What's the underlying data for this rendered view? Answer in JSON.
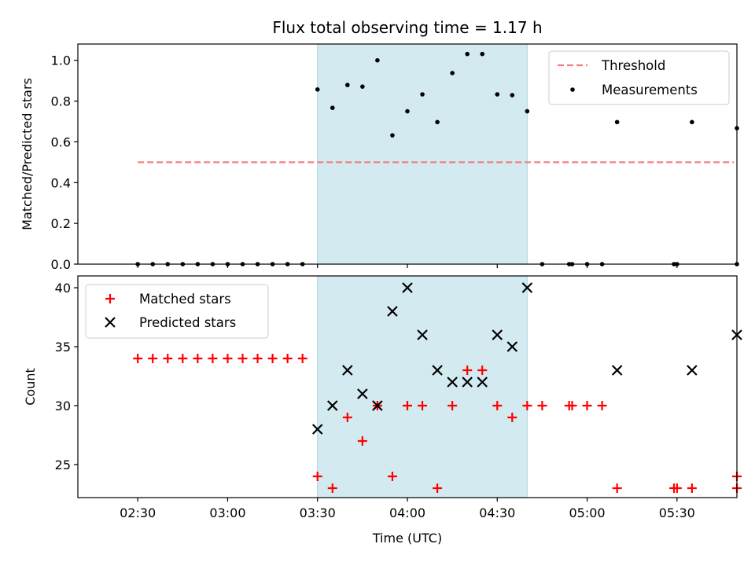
{
  "chart_data": [
    {
      "type": "scatter",
      "title": "Flux total observing time = 1.17 h",
      "xlabel": "",
      "ylabel": "Matched/Predicted stars",
      "ylim": [
        0,
        1.08
      ],
      "yticks": [
        0.0,
        0.2,
        0.4,
        0.6,
        0.8,
        1.0
      ],
      "ytick_labels": [
        "0.0",
        "0.2",
        "0.4",
        "0.6",
        "0.8",
        "1.0"
      ],
      "xlim": [
        "02:10",
        "05:50"
      ],
      "grid": false,
      "legend_placement": "top-right",
      "shaded_region": {
        "x_start": "03:30",
        "x_end": "04:40",
        "color": "#d3eaf1"
      },
      "threshold": {
        "name": "Threshold",
        "value": 0.5,
        "x_start": "02:30",
        "x_end": "05:49",
        "color": "#f08080",
        "style": "dashed"
      },
      "series": [
        {
          "name": "Measurements",
          "color": "#000000",
          "marker": "dot",
          "points": [
            [
              "02:30",
              0.0
            ],
            [
              "02:35",
              0.0
            ],
            [
              "02:40",
              0.0
            ],
            [
              "02:45",
              0.0
            ],
            [
              "02:50",
              0.0
            ],
            [
              "02:55",
              0.0
            ],
            [
              "03:00",
              0.0
            ],
            [
              "03:05",
              0.0
            ],
            [
              "03:10",
              0.0
            ],
            [
              "03:15",
              0.0
            ],
            [
              "03:20",
              0.0
            ],
            [
              "03:25",
              0.0
            ],
            [
              "03:30",
              0.857
            ],
            [
              "03:35",
              0.767
            ],
            [
              "03:40",
              0.879
            ],
            [
              "03:45",
              0.871
            ],
            [
              "03:50",
              1.0
            ],
            [
              "03:55",
              0.632
            ],
            [
              "04:00",
              0.75
            ],
            [
              "04:05",
              0.833
            ],
            [
              "04:10",
              0.697
            ],
            [
              "04:15",
              0.9375
            ],
            [
              "04:20",
              1.031
            ],
            [
              "04:25",
              1.031
            ],
            [
              "04:30",
              0.833
            ],
            [
              "04:35",
              0.829
            ],
            [
              "04:40",
              0.75
            ],
            [
              "04:45",
              0.0
            ],
            [
              "04:54",
              0.0
            ],
            [
              "04:55",
              0.0
            ],
            [
              "05:00",
              0.0
            ],
            [
              "05:05",
              0.0
            ],
            [
              "05:10",
              0.697
            ],
            [
              "05:29",
              0.0
            ],
            [
              "05:30",
              0.0
            ],
            [
              "05:35",
              0.697
            ],
            [
              "05:50",
              0.0
            ],
            [
              "05:50",
              0.667
            ]
          ]
        }
      ]
    },
    {
      "type": "scatter",
      "title": "",
      "xlabel": "Time (UTC)",
      "ylabel": "Count",
      "ylim": [
        22.2,
        41
      ],
      "yticks": [
        25,
        30,
        35,
        40
      ],
      "ytick_labels": [
        "25",
        "30",
        "35",
        "40"
      ],
      "xlim": [
        "02:10",
        "05:50"
      ],
      "xticks": [
        "02:30",
        "03:00",
        "03:30",
        "04:00",
        "04:30",
        "05:00",
        "05:30"
      ],
      "xtick_labels": [
        "02:30",
        "03:00",
        "03:30",
        "04:00",
        "04:30",
        "05:00",
        "05:30"
      ],
      "grid": false,
      "legend_placement": "top-left",
      "shaded_region": {
        "x_start": "03:30",
        "x_end": "04:40",
        "color": "#d3eaf1"
      },
      "series": [
        {
          "name": "Matched stars",
          "color": "#ff0000",
          "marker": "plus",
          "points": [
            [
              "02:30",
              34
            ],
            [
              "02:35",
              34
            ],
            [
              "02:40",
              34
            ],
            [
              "02:45",
              34
            ],
            [
              "02:50",
              34
            ],
            [
              "02:55",
              34
            ],
            [
              "03:00",
              34
            ],
            [
              "03:05",
              34
            ],
            [
              "03:10",
              34
            ],
            [
              "03:15",
              34
            ],
            [
              "03:20",
              34
            ],
            [
              "03:25",
              34
            ],
            [
              "03:30",
              24
            ],
            [
              "03:35",
              23
            ],
            [
              "03:40",
              29
            ],
            [
              "03:45",
              27
            ],
            [
              "03:50",
              30
            ],
            [
              "03:55",
              24
            ],
            [
              "04:00",
              30
            ],
            [
              "04:05",
              30
            ],
            [
              "04:10",
              23
            ],
            [
              "04:15",
              30
            ],
            [
              "04:20",
              33
            ],
            [
              "04:25",
              33
            ],
            [
              "04:30",
              30
            ],
            [
              "04:35",
              29
            ],
            [
              "04:40",
              30
            ],
            [
              "04:45",
              30
            ],
            [
              "04:54",
              30
            ],
            [
              "04:55",
              30
            ],
            [
              "05:00",
              30
            ],
            [
              "05:05",
              30
            ],
            [
              "05:10",
              23
            ],
            [
              "05:29",
              23
            ],
            [
              "05:30",
              23
            ],
            [
              "05:35",
              23
            ],
            [
              "05:50",
              24
            ],
            [
              "05:50",
              23
            ]
          ]
        },
        {
          "name": "Predicted stars",
          "color": "#000000",
          "marker": "x",
          "points": [
            [
              "03:30",
              28
            ],
            [
              "03:35",
              30
            ],
            [
              "03:40",
              33
            ],
            [
              "03:45",
              31
            ],
            [
              "03:50",
              30
            ],
            [
              "03:55",
              38
            ],
            [
              "04:00",
              40
            ],
            [
              "04:05",
              36
            ],
            [
              "04:10",
              33
            ],
            [
              "04:15",
              32
            ],
            [
              "04:20",
              32
            ],
            [
              "04:25",
              32
            ],
            [
              "04:30",
              36
            ],
            [
              "04:35",
              35
            ],
            [
              "04:40",
              40
            ],
            [
              "05:10",
              33
            ],
            [
              "05:35",
              33
            ],
            [
              "05:50",
              36
            ]
          ]
        }
      ]
    }
  ]
}
